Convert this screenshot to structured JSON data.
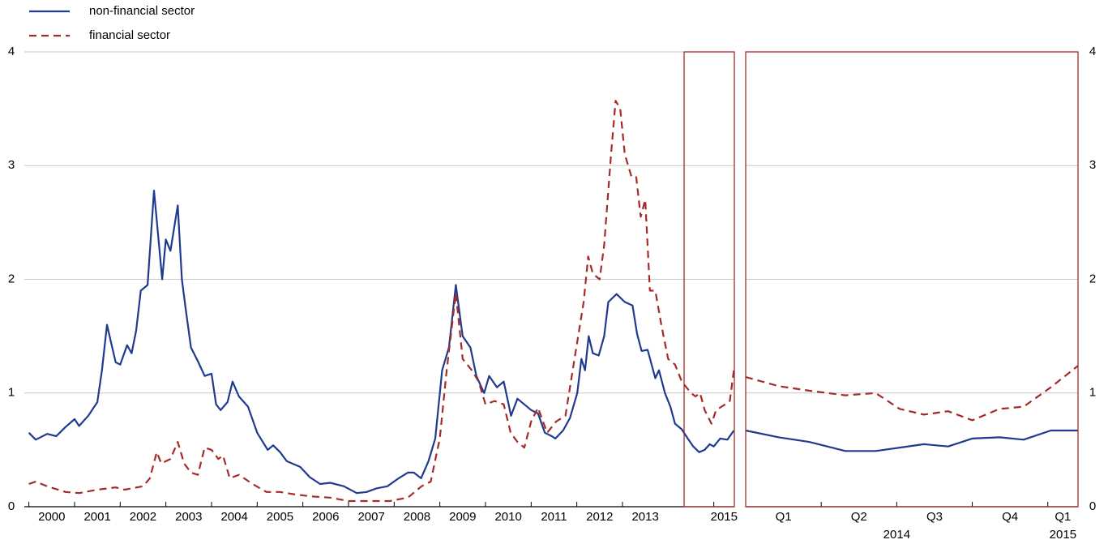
{
  "chart_data": [
    {
      "type": "line",
      "legend": "top-left",
      "grid": true,
      "yaxis_side": "left",
      "xlim": [
        1999.9,
        2015.45
      ],
      "ylim": [
        0,
        4
      ],
      "yticks": [
        0,
        1,
        2,
        3,
        4
      ],
      "xticks": [
        2000,
        2001,
        2002,
        2003,
        2004,
        2005,
        2006,
        2007,
        2008,
        2009,
        2010,
        2011,
        2012,
        2013,
        2015
      ],
      "highlight_x": [
        2014.35,
        2015.45
      ],
      "highlight_color": "#a52a2a",
      "series": [
        {
          "name": "non-financial sector",
          "color": "#1f3a8f",
          "dash": false,
          "x": [
            2000.0,
            2000.15,
            2000.4,
            2000.6,
            2000.8,
            2001.0,
            2001.1,
            2001.3,
            2001.5,
            2001.6,
            2001.71,
            2001.9,
            2002.0,
            2002.15,
            2002.25,
            2002.35,
            2002.45,
            2002.6,
            2002.74,
            2002.92,
            2003.0,
            2003.1,
            2003.26,
            2003.35,
            2003.43,
            2003.55,
            2003.7,
            2003.85,
            2004.0,
            2004.1,
            2004.2,
            2004.35,
            2004.46,
            2004.6,
            2004.8,
            2005.0,
            2005.23,
            2005.35,
            2005.5,
            2005.65,
            2005.94,
            2006.15,
            2006.38,
            2006.6,
            2006.9,
            2007.18,
            2007.4,
            2007.6,
            2007.85,
            2008.1,
            2008.3,
            2008.43,
            2008.59,
            2008.75,
            2008.9,
            2009.05,
            2009.2,
            2009.35,
            2009.5,
            2009.67,
            2009.8,
            2009.97,
            2010.08,
            2010.25,
            2010.4,
            2010.56,
            2010.7,
            2010.85,
            2011.0,
            2011.15,
            2011.3,
            2011.45,
            2011.53,
            2011.7,
            2011.85,
            2012.01,
            2012.1,
            2012.18,
            2012.26,
            2012.35,
            2012.48,
            2012.6,
            2012.69,
            2012.87,
            2013.05,
            2013.22,
            2013.32,
            2013.42,
            2013.55,
            2013.72,
            2013.8,
            2013.93,
            2014.05,
            2014.15,
            2014.3,
            2014.43,
            2014.55,
            2014.68,
            2014.8,
            2014.91,
            2015.0,
            2015.14,
            2015.3,
            2015.44
          ],
          "values": [
            0.65,
            0.59,
            0.64,
            0.62,
            0.7,
            0.77,
            0.71,
            0.8,
            0.92,
            1.2,
            1.6,
            1.27,
            1.25,
            1.42,
            1.35,
            1.55,
            1.9,
            1.95,
            2.78,
            2.0,
            2.35,
            2.25,
            2.65,
            2.0,
            1.75,
            1.4,
            1.28,
            1.15,
            1.17,
            0.9,
            0.85,
            0.92,
            1.1,
            0.97,
            0.88,
            0.65,
            0.5,
            0.54,
            0.48,
            0.4,
            0.35,
            0.26,
            0.2,
            0.21,
            0.18,
            0.12,
            0.13,
            0.16,
            0.18,
            0.25,
            0.3,
            0.3,
            0.25,
            0.4,
            0.6,
            1.2,
            1.4,
            1.95,
            1.5,
            1.4,
            1.15,
            1.0,
            1.15,
            1.05,
            1.1,
            0.8,
            0.95,
            0.9,
            0.85,
            0.82,
            0.65,
            0.62,
            0.6,
            0.67,
            0.78,
            1.0,
            1.3,
            1.2,
            1.5,
            1.35,
            1.33,
            1.5,
            1.8,
            1.87,
            1.8,
            1.77,
            1.52,
            1.37,
            1.38,
            1.13,
            1.2,
            1.0,
            0.88,
            0.73,
            0.68,
            0.6,
            0.53,
            0.48,
            0.5,
            0.55,
            0.53,
            0.6,
            0.59,
            0.67
          ]
        },
        {
          "name": "financial sector",
          "color": "#a52a2a",
          "dash": true,
          "x": [
            2000.0,
            2000.15,
            2000.4,
            2000.8,
            2001.1,
            2001.5,
            2001.9,
            2002.1,
            2002.5,
            2002.65,
            2002.8,
            2002.9,
            2003.1,
            2003.26,
            2003.4,
            2003.55,
            2003.7,
            2003.85,
            2004.0,
            2004.15,
            2004.25,
            2004.4,
            2004.6,
            2004.9,
            2005.2,
            2005.5,
            2005.8,
            2006.2,
            2006.6,
            2007.0,
            2007.5,
            2007.9,
            2008.3,
            2008.6,
            2008.8,
            2009.0,
            2009.15,
            2009.35,
            2009.5,
            2009.7,
            2009.85,
            2010.0,
            2010.2,
            2010.4,
            2010.55,
            2010.7,
            2010.85,
            2011.0,
            2011.15,
            2011.35,
            2011.55,
            2011.75,
            2011.95,
            2012.15,
            2012.25,
            2012.35,
            2012.5,
            2012.6,
            2012.75,
            2012.85,
            2012.95,
            2013.05,
            2013.2,
            2013.3,
            2013.4,
            2013.5,
            2013.6,
            2013.72,
            2013.85,
            2014.0,
            2014.15,
            2014.3,
            2014.5,
            2014.6,
            2014.7,
            2014.8,
            2014.95,
            2015.05,
            2015.25,
            2015.35,
            2015.44
          ],
          "values": [
            0.2,
            0.22,
            0.18,
            0.13,
            0.12,
            0.15,
            0.17,
            0.15,
            0.18,
            0.25,
            0.48,
            0.38,
            0.42,
            0.57,
            0.38,
            0.3,
            0.28,
            0.52,
            0.5,
            0.42,
            0.45,
            0.25,
            0.28,
            0.2,
            0.13,
            0.13,
            0.11,
            0.09,
            0.08,
            0.05,
            0.05,
            0.05,
            0.08,
            0.18,
            0.22,
            0.6,
            1.2,
            1.88,
            1.3,
            1.2,
            1.1,
            0.9,
            0.93,
            0.9,
            0.65,
            0.57,
            0.52,
            0.75,
            0.87,
            0.65,
            0.75,
            0.8,
            1.3,
            1.8,
            2.2,
            2.05,
            2.0,
            2.3,
            3.1,
            3.57,
            3.5,
            3.1,
            2.9,
            2.9,
            2.55,
            2.7,
            1.9,
            1.9,
            1.6,
            1.3,
            1.25,
            1.1,
            1.0,
            0.97,
            1.0,
            0.85,
            0.73,
            0.85,
            0.9,
            0.93,
            1.2
          ]
        }
      ]
    },
    {
      "type": "line",
      "grid": true,
      "yaxis_side": "right",
      "xlim": [
        2014.0,
        2015.1
      ],
      "ylim": [
        0,
        4
      ],
      "yticks": [
        0,
        1,
        2,
        3,
        4
      ],
      "xticks": [
        {
          "value": 2014.0,
          "label": "Q1"
        },
        {
          "value": 2014.25,
          "label": "Q2"
        },
        {
          "value": 2014.5,
          "label": "Q3"
        },
        {
          "value": 2014.75,
          "label": "Q4"
        },
        {
          "value": 2015.0,
          "label": "Q1"
        }
      ],
      "year_labels": [
        {
          "value": 2014.5,
          "label": "2014"
        },
        {
          "value": 2015.05,
          "label": "2015"
        }
      ],
      "frame_color": "#a52a2a",
      "series": [
        {
          "color": "#1f3a8f",
          "dash": false,
          "x": [
            2014.0,
            2014.11,
            2014.21,
            2014.33,
            2014.43,
            2014.51,
            2014.59,
            2014.67,
            2014.75,
            2014.84,
            2014.92,
            2015.01,
            2015.1
          ],
          "values": [
            0.67,
            0.61,
            0.57,
            0.49,
            0.49,
            0.52,
            0.55,
            0.53,
            0.6,
            0.61,
            0.59,
            0.67,
            0.67
          ]
        },
        {
          "color": "#a52a2a",
          "dash": true,
          "x": [
            2014.0,
            2014.11,
            2014.21,
            2014.33,
            2014.43,
            2014.51,
            2014.59,
            2014.67,
            2014.75,
            2014.84,
            2014.92,
            2015.01,
            2015.1
          ],
          "values": [
            1.14,
            1.06,
            1.02,
            0.98,
            1.0,
            0.86,
            0.81,
            0.84,
            0.76,
            0.86,
            0.88,
            1.05,
            1.24
          ]
        }
      ]
    }
  ]
}
